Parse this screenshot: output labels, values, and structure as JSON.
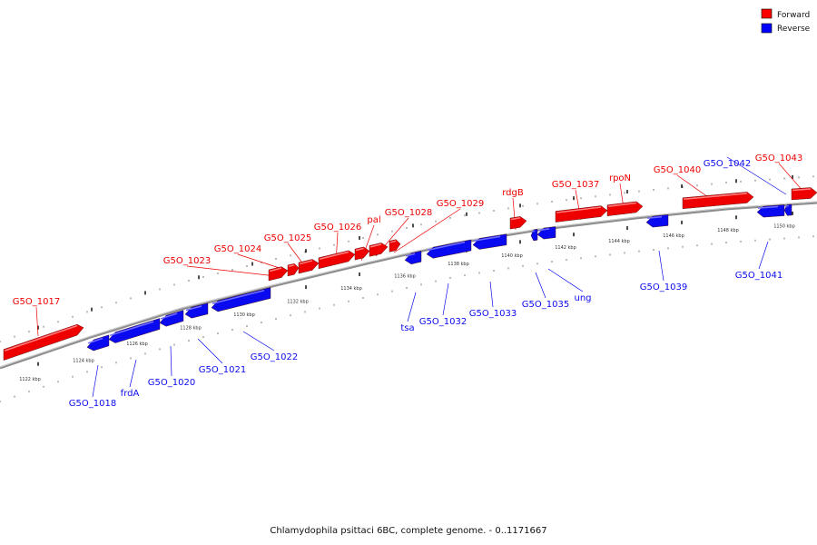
{
  "caption": "Chlamydophila psittaci 6BC, complete genome. - 0..1171667",
  "legend": [
    {
      "label": "Forward",
      "color": "#ff0000"
    },
    {
      "label": "Reverse",
      "color": "#0000ff"
    }
  ],
  "colors": {
    "forward": "#ee0000",
    "reverse": "#0a0af0",
    "backbone": "#8c8c8c"
  },
  "ticks": [
    "1122 kbp",
    "1124 kbp",
    "1126 kbp",
    "1128 kbp",
    "1130 kbp",
    "1132 kbp",
    "1134 kbp",
    "1136 kbp",
    "1138 kbp",
    "1140 kbp",
    "1142 kbp",
    "1144 kbp",
    "1146 kbp",
    "1148 kbp",
    "1150 kbp"
  ],
  "features": [
    {
      "name": "G5O_1017",
      "strand": "forward"
    },
    {
      "name": "G5O_1018",
      "strand": "reverse"
    },
    {
      "name": "frdA",
      "strand": "reverse"
    },
    {
      "name": "G5O_1020",
      "strand": "reverse"
    },
    {
      "name": "G5O_1021",
      "strand": "reverse"
    },
    {
      "name": "G5O_1022",
      "strand": "reverse"
    },
    {
      "name": "G5O_1023",
      "strand": "forward"
    },
    {
      "name": "G5O_1024",
      "strand": "forward"
    },
    {
      "name": "G5O_1025",
      "strand": "forward"
    },
    {
      "name": "G5O_1026",
      "strand": "forward"
    },
    {
      "name": "pal",
      "strand": "forward"
    },
    {
      "name": "G5O_1028",
      "strand": "forward"
    },
    {
      "name": "G5O_1029",
      "strand": "forward"
    },
    {
      "name": "tsa",
      "strand": "reverse"
    },
    {
      "name": "G5O_1032",
      "strand": "reverse"
    },
    {
      "name": "G5O_1033",
      "strand": "reverse"
    },
    {
      "name": "rdgB",
      "strand": "forward"
    },
    {
      "name": "G5O_1035",
      "strand": "reverse"
    },
    {
      "name": "ung",
      "strand": "reverse"
    },
    {
      "name": "G5O_1037",
      "strand": "forward"
    },
    {
      "name": "rpoN",
      "strand": "forward"
    },
    {
      "name": "G5O_1039",
      "strand": "reverse"
    },
    {
      "name": "G5O_1040",
      "strand": "forward"
    },
    {
      "name": "G5O_1041",
      "strand": "reverse"
    },
    {
      "name": "G5O_1042",
      "strand": "reverse"
    },
    {
      "name": "G5O_1043",
      "strand": "forward"
    }
  ]
}
